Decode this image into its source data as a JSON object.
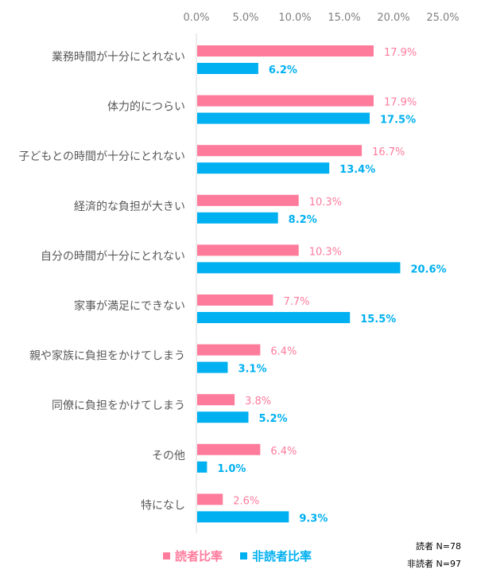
{
  "chart_data": {
    "type": "bar",
    "orientation": "horizontal",
    "categories": [
      "業務時間が十分にとれない",
      "体力的につらい",
      "子どもとの時間が十分にとれない",
      "経済的な負担が大きい",
      "自分の時間が十分にとれない",
      "家事が満足にできない",
      "親や家族に負担をかけてしまう",
      "同僚に負担をかけてしまう",
      "その他",
      "特になし"
    ],
    "series": [
      {
        "name": "読者比率",
        "color": "#ff7b9c",
        "values": [
          17.9,
          17.9,
          16.7,
          10.3,
          10.3,
          7.7,
          6.4,
          3.8,
          6.4,
          2.6
        ],
        "labels": [
          "17.9%",
          "17.9%",
          "16.7%",
          "10.3%",
          "10.3%",
          "7.7%",
          "6.4%",
          "3.8%",
          "6.4%",
          "2.6%"
        ]
      },
      {
        "name": "非読者比率",
        "color": "#00b0f0",
        "values": [
          6.2,
          17.5,
          13.4,
          8.2,
          20.6,
          15.5,
          3.1,
          5.2,
          1.0,
          9.3
        ],
        "labels": [
          "6.2%",
          "17.5%",
          "13.4%",
          "8.2%",
          "20.6%",
          "15.5%",
          "3.1%",
          "5.2%",
          "1.0%",
          "9.3%"
        ]
      }
    ],
    "xlim": [
      0,
      25
    ],
    "ticks": [
      "0.0%",
      "5.0%",
      "10.0%",
      "15.0%",
      "20.0%",
      "25.0%"
    ],
    "legend_position": "bottom"
  },
  "notes": {
    "readers": "読者 N=78",
    "non_readers": "非読者 N=97"
  }
}
